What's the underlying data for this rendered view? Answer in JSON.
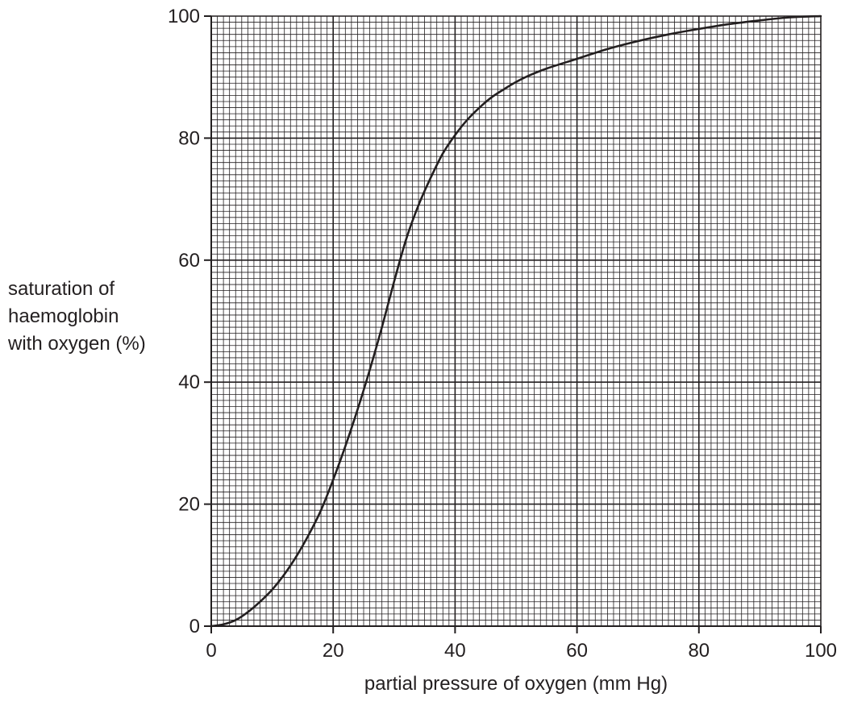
{
  "chart_data": {
    "type": "line",
    "title": "",
    "xlabel": "partial pressure of oxygen (mm Hg)",
    "ylabel_lines": [
      "saturation of",
      "haemoglobin",
      "with oxygen (%)"
    ],
    "xlim": [
      0,
      100
    ],
    "ylim": [
      0,
      100
    ],
    "x_major_step": 20,
    "y_major_step": 20,
    "x_minor_step": 1,
    "y_minor_step": 1,
    "grid": true,
    "x_ticks": [
      "0",
      "20",
      "40",
      "60",
      "80",
      "100"
    ],
    "y_ticks": [
      "0",
      "20",
      "40",
      "60",
      "80",
      "100"
    ],
    "series": [
      {
        "x": [
          0,
          2,
          4,
          6,
          8,
          10,
          12,
          14,
          16,
          18,
          20,
          22,
          24,
          26,
          28,
          30,
          32,
          34,
          36,
          38,
          40,
          42,
          44,
          46,
          48,
          50,
          52,
          55,
          60,
          65,
          70,
          75,
          80,
          85,
          90,
          95,
          100
        ],
        "y": [
          0,
          0.3,
          1,
          2.3,
          4,
          6,
          8.5,
          11.5,
          15,
          19,
          24,
          29.5,
          35.5,
          42,
          49,
          56.5,
          63.5,
          69,
          73.5,
          77.5,
          80.5,
          83,
          85,
          86.7,
          88,
          89.2,
          90.2,
          91.4,
          93,
          94.6,
          95.9,
          97,
          97.9,
          98.7,
          99.3,
          99.8,
          100
        ]
      }
    ],
    "colors": {
      "axis": "#231f20",
      "major_grid": "#231f20",
      "minor_grid": "#231f20",
      "curve": "#231f20"
    }
  }
}
